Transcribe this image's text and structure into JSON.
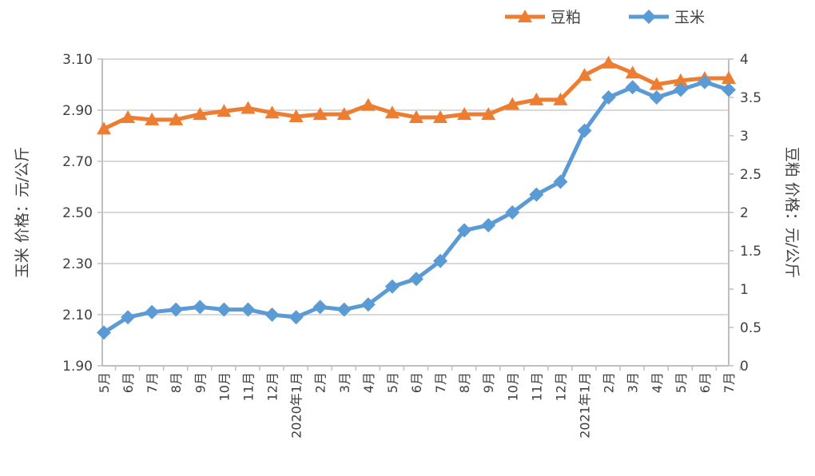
{
  "chart_data": {
    "type": "line",
    "title": "",
    "categories": [
      "5月",
      "6月",
      "7月",
      "8月",
      "9月",
      "10月",
      "11月",
      "12月",
      "2020年1月",
      "2月",
      "3月",
      "4月",
      "5月",
      "6月",
      "7月",
      "8月",
      "9月",
      "10月",
      "11月",
      "12月",
      "2021年1月",
      "2月",
      "3月",
      "4月",
      "5月",
      "6月",
      "7月"
    ],
    "y_left": {
      "label": "玉米  价格：元/公斤",
      "range": [
        1.9,
        3.1
      ],
      "ticks": [
        "1.90",
        "2.10",
        "2.30",
        "2.50",
        "2.70",
        "2.90",
        "3.10"
      ]
    },
    "y_right": {
      "label": "豆粕  价格：元/公斤",
      "range": [
        0,
        4
      ],
      "ticks": [
        "0",
        "0.5",
        "1",
        "1.5",
        "2",
        "2.5",
        "3",
        "3.5",
        "4"
      ]
    },
    "grid": true,
    "legend_position": "top-right",
    "series": [
      {
        "name": "豆粕",
        "axis": "right",
        "color": "#ED7D31",
        "marker": "triangle",
        "values": [
          3.09,
          3.24,
          3.21,
          3.21,
          3.28,
          3.32,
          3.36,
          3.3,
          3.25,
          3.28,
          3.28,
          3.4,
          3.3,
          3.24,
          3.24,
          3.28,
          3.28,
          3.41,
          3.47,
          3.47,
          3.79,
          3.95,
          3.82,
          3.67,
          3.72,
          3.75,
          3.75
        ]
      },
      {
        "name": "玉米",
        "axis": "left",
        "color": "#5B9BD5",
        "marker": "diamond",
        "values": [
          2.03,
          2.09,
          2.11,
          2.12,
          2.13,
          2.12,
          2.12,
          2.1,
          2.09,
          2.13,
          2.12,
          2.14,
          2.21,
          2.24,
          2.31,
          2.43,
          2.45,
          2.5,
          2.57,
          2.62,
          2.82,
          2.95,
          2.99,
          2.95,
          2.98,
          3.01,
          2.98
        ]
      }
    ]
  }
}
